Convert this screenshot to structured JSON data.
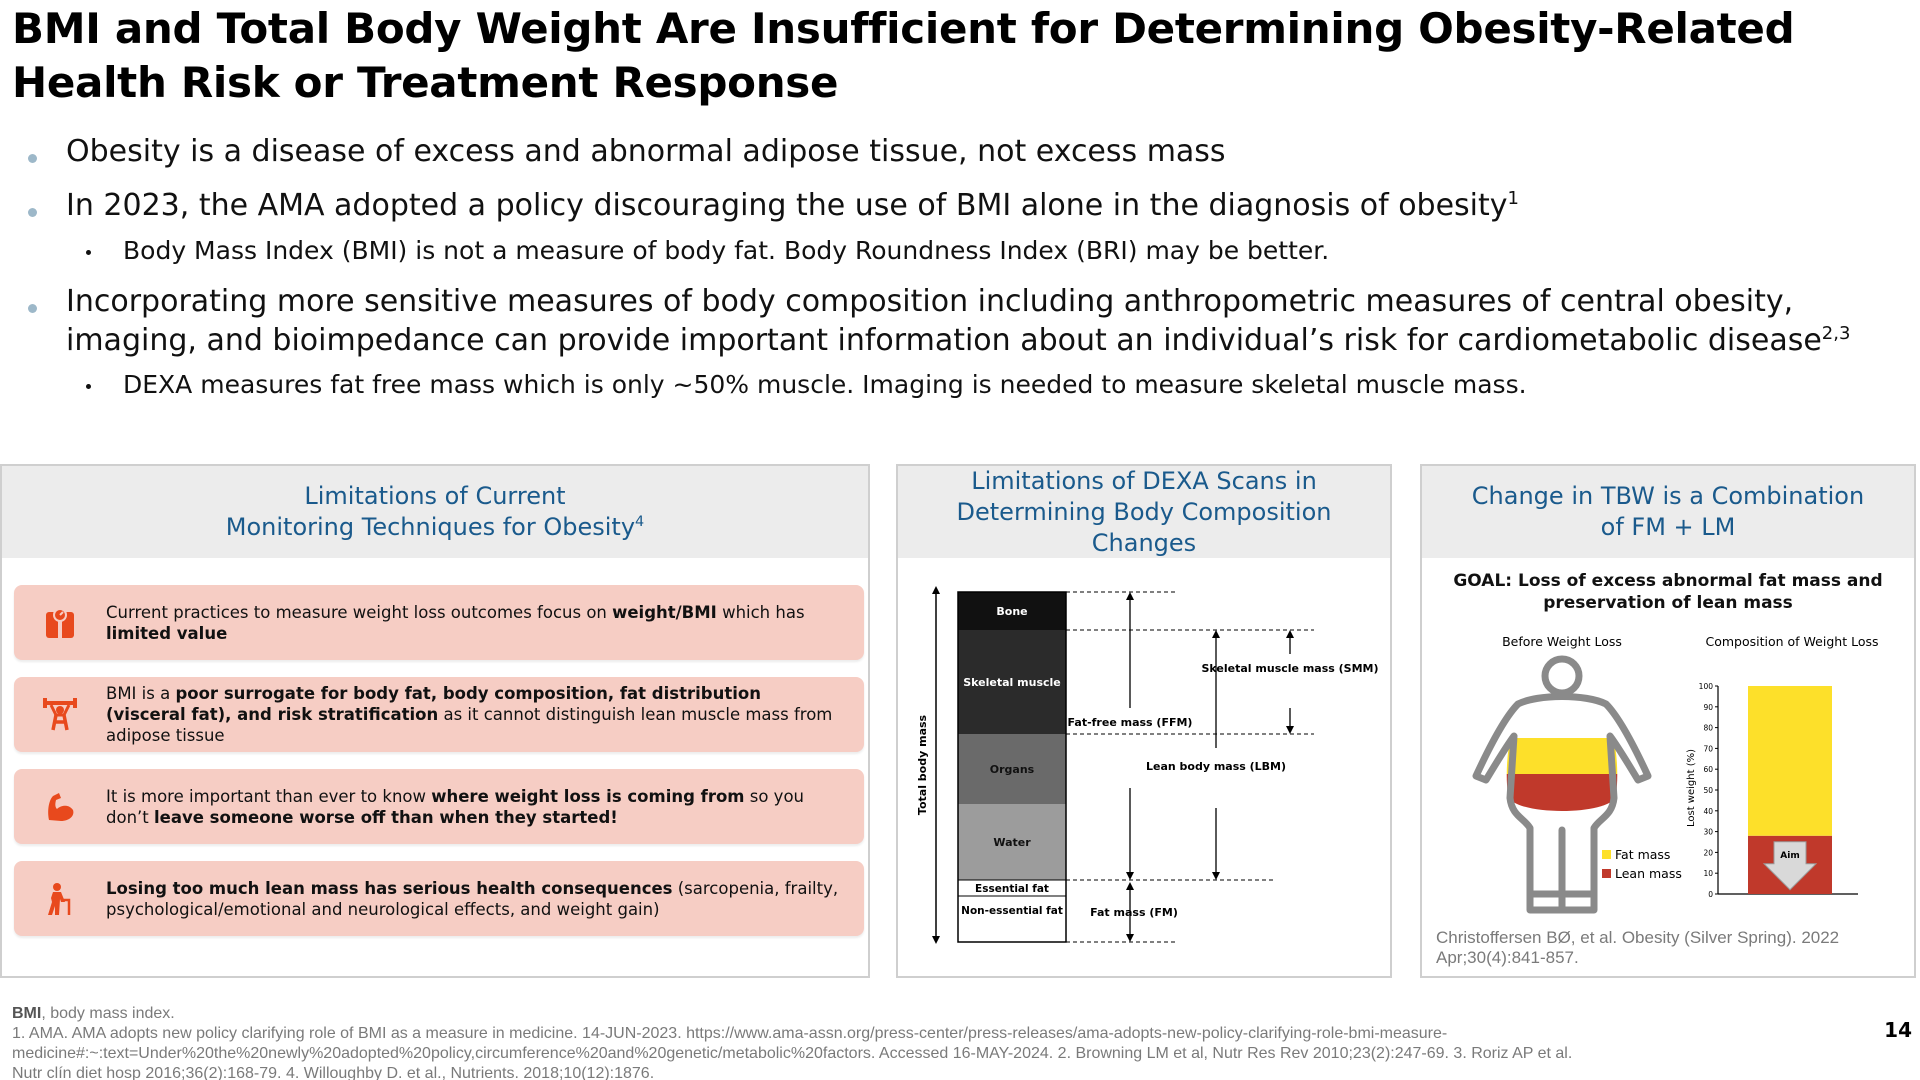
{
  "title": "BMI and Total Body Weight Are Insufficient for Determining Obesity-Related Health Risk or Treatment Response",
  "bullets": {
    "b1": "Obesity is a disease of excess and abnormal adipose tissue, not excess mass",
    "b2": "In 2023, the AMA adopted a policy discouraging the use of BMI alone in the diagnosis of obesity",
    "b2_sup": "1",
    "b2_sub": "Body Mass Index (BMI) is not a measure of body fat.  Body Roundness Index (BRI) may be better.",
    "b3": "Incorporating more sensitive measures of body composition including anthropometric measures of central obesity, imaging, and bioimpedance can provide important information about an individual’s risk for cardiometabolic disease",
    "b3_sup": "2,3",
    "b3_sub": "DEXA measures fat free mass which is only ~50% muscle. Imaging is needed to measure skeletal muscle mass."
  },
  "panel1": {
    "title_line1": "Limitations of Current",
    "title_line2": "Monitoring Techniques for Obesity",
    "title_sup": "4",
    "items": [
      {
        "icon": "scale-icon",
        "pre": "Current practices to measure weight loss outcomes focus on ",
        "bold": "weight/BMI",
        "post": " which has ",
        "bold2": "limited value",
        "post2": ""
      },
      {
        "icon": "weightlifter-icon",
        "pre": "BMI is a ",
        "bold": "poor surrogate for body fat, body composition, fat distribution (visceral fat), and risk stratification",
        "post": " as it cannot distinguish lean muscle mass from adipose tissue",
        "bold2": "",
        "post2": ""
      },
      {
        "icon": "muscle-arm-icon",
        "pre": "It is more important than ever to know ",
        "bold": "where weight loss is coming from",
        "post": " so you don’t ",
        "bold2": "leave someone worse off than when they started!",
        "post2": ""
      },
      {
        "icon": "elderly-cane-icon",
        "pre": "",
        "bold": "Losing too much lean mass has serious health consequences",
        "post": " (sarcopenia, frailty, psychological/emotional and neurological effects, and weight gain)",
        "bold2": "",
        "post2": ""
      }
    ]
  },
  "panel2": {
    "title": "Limitations of DEXA Scans in Determining Body Composition Changes",
    "y_axis": "Total body mass",
    "segments": [
      "Bone",
      "Skeletal muscle",
      "Organs",
      "Water",
      "Essential fat",
      "Non-essential fat"
    ],
    "labels": {
      "ffm": "Fat-free mass (FFM)",
      "lbm": "Lean body mass (LBM)",
      "smm": "Skeletal muscle mass (SMM)",
      "fm": "Fat mass (FM)"
    }
  },
  "panel3": {
    "title": "Change in TBW is a Combination of FM + LM",
    "goal": "GOAL: Loss of excess abnormal fat mass and preservation of lean mass",
    "before_label": "Before Weight Loss",
    "comp_label": "Composition of Weight Loss",
    "ylabel": "Lost weight (%)",
    "legend": [
      "Fat mass",
      "Lean mass"
    ],
    "aim_label": "Aim",
    "citation": "Christoffersen BØ, et al. Obesity (Silver Spring). 2022 Apr;30(4):841-857."
  },
  "chart_data": {
    "type": "bar",
    "title": "Composition of Weight Loss",
    "ylabel": "Lost weight (%)",
    "ylim": [
      0,
      100
    ],
    "yticks": [
      0,
      10,
      20,
      30,
      40,
      50,
      60,
      70,
      80,
      90,
      100
    ],
    "categories": [
      ""
    ],
    "series": [
      {
        "name": "Lean mass",
        "values": [
          28
        ],
        "color": "#c0392b"
      },
      {
        "name": "Fat mass",
        "values": [
          72
        ],
        "color": "#fde02a"
      }
    ]
  },
  "footer": {
    "abbr_bold": "BMI",
    "abbr_rest": ", body mass index.",
    "refs": "1. AMA. AMA adopts new policy clarifying role of BMI as a measure in medicine. 14-JUN-2023. https://www.ama-assn.org/press-center/press-releases/ama-adopts-new-policy-clarifying-role-bmi-measure-medicine#:~:text=Under%20the%20newly%20adopted%20policy,circumference%20and%20genetic/metabolic%20factors. Accessed 16-MAY-2024. 2. Browning LM et al, Nutr Res Rev 2010;23(2):247-69. 3. Roriz AP et al. Nutr clín diet hosp 2016;36(2):168-79. 4. Willoughby D. et al., Nutrients. 2018;10(12):1876.",
    "page": "14"
  },
  "colors": {
    "title_blue": "#1a5a8c",
    "pink": "#f6cdc4",
    "orange": "#e8491d",
    "fat": "#fde02a",
    "lean": "#c0392b"
  }
}
